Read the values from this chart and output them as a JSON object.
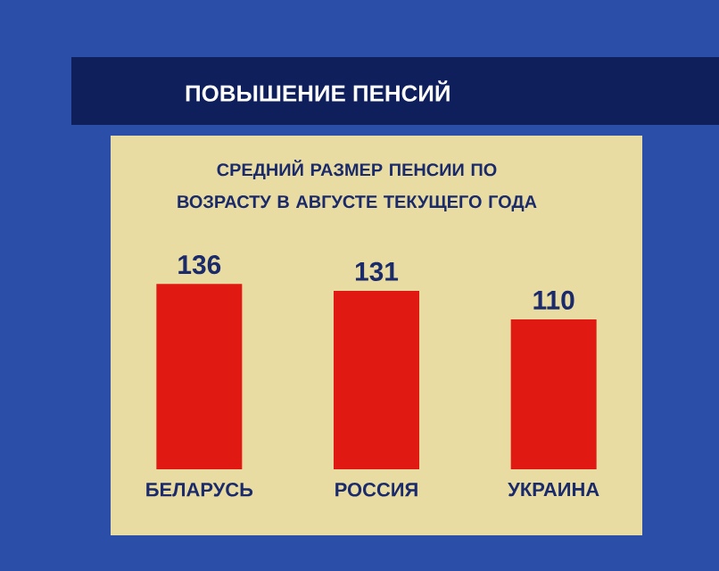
{
  "chart_data": {
    "type": "bar",
    "title": "ПОВЫШЕНИЕ ПЕНСИЙ",
    "subtitle": "СРЕДНИЙ РАЗМЕР ПЕНСИИ ПО ВОЗРАСТУ В АВГУСТЕ ТЕКУЩЕГО ГОДА",
    "categories": [
      "БЕЛАРУСЬ",
      "РОССИЯ",
      "УКРАИНА"
    ],
    "values": [
      136,
      131,
      110
    ],
    "color": "#e01a12",
    "data_labels": true
  }
}
